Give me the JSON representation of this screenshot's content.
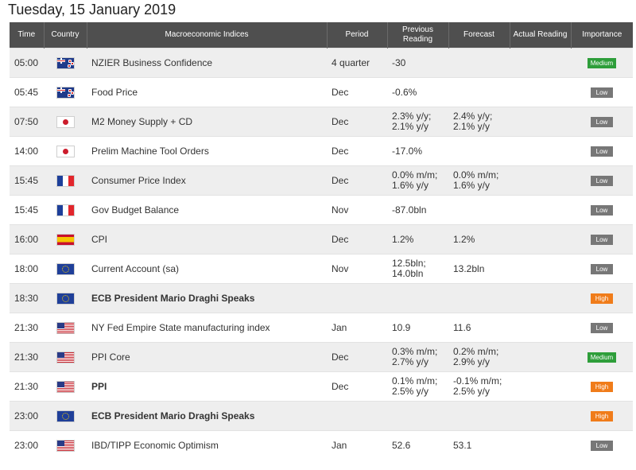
{
  "page": {
    "date_title": "Tuesday, 15 January 2019"
  },
  "table": {
    "headers": {
      "time": "Time",
      "country": "Country",
      "indices": "Macroeconomic Indices",
      "period": "Period",
      "previous": "Previous Reading",
      "forecast": "Forecast",
      "actual": "Actual Reading",
      "importance": "Importance"
    },
    "rows": [
      {
        "time": "05:00",
        "flag": "nz-flag-icon",
        "indicator": "NZIER Business Confidence",
        "bold": false,
        "period": "4 quarter",
        "previous": [
          "-30"
        ],
        "forecast": [],
        "actual": "",
        "importance": "Medium"
      },
      {
        "time": "05:45",
        "flag": "nz-flag-icon",
        "indicator": "Food Price",
        "bold": false,
        "period": "Dec",
        "previous": [
          "-0.6%"
        ],
        "forecast": [],
        "actual": "",
        "importance": "Low"
      },
      {
        "time": "07:50",
        "flag": "jp-flag-icon",
        "indicator": "M2 Money Supply + CD",
        "bold": false,
        "period": "Dec",
        "previous": [
          "2.3% y/y;",
          "2.1% y/y"
        ],
        "forecast": [
          "2.4% y/y;",
          "2.1% y/y"
        ],
        "actual": "",
        "importance": "Low"
      },
      {
        "time": "14:00",
        "flag": "jp-flag-icon",
        "indicator": "Prelim Machine Tool Orders",
        "bold": false,
        "period": "Dec",
        "previous": [
          "-17.0%"
        ],
        "forecast": [],
        "actual": "",
        "importance": "Low"
      },
      {
        "time": "15:45",
        "flag": "fr-flag-icon",
        "indicator": "Consumer Price Index",
        "bold": false,
        "period": "Dec",
        "previous": [
          "0.0% m/m;",
          "1.6% y/y"
        ],
        "forecast": [
          "0.0% m/m;",
          "1.6% y/y"
        ],
        "actual": "",
        "importance": "Low"
      },
      {
        "time": "15:45",
        "flag": "fr-flag-icon",
        "indicator": "Gov Budget Balance",
        "bold": false,
        "period": "Nov",
        "previous": [
          "-87.0bln"
        ],
        "forecast": [],
        "actual": "",
        "importance": "Low"
      },
      {
        "time": "16:00",
        "flag": "es-flag-icon",
        "indicator": "CPI",
        "bold": false,
        "period": "Dec",
        "previous": [
          "1.2%"
        ],
        "forecast": [
          "1.2%"
        ],
        "actual": "",
        "importance": "Low"
      },
      {
        "time": "18:00",
        "flag": "eu-flag-icon",
        "indicator": "Current Account (sa)",
        "bold": false,
        "period": "Nov",
        "previous": [
          "12.5bln;",
          "14.0bln"
        ],
        "forecast": [
          "13.2bln"
        ],
        "actual": "",
        "importance": "Low"
      },
      {
        "time": "18:30",
        "flag": "eu-flag-icon",
        "indicator": "ECB President Mario Draghi Speaks",
        "bold": true,
        "period": "",
        "previous": [],
        "forecast": [],
        "actual": "",
        "importance": "High"
      },
      {
        "time": "21:30",
        "flag": "us-flag-icon",
        "indicator": "NY Fed Empire State manufacturing index",
        "bold": false,
        "period": "Jan",
        "previous": [
          "10.9"
        ],
        "forecast": [
          "11.6"
        ],
        "actual": "",
        "importance": "Low"
      },
      {
        "time": "21:30",
        "flag": "us-flag-icon",
        "indicator": "PPI Core",
        "bold": false,
        "period": "Dec",
        "previous": [
          "0.3% m/m;",
          "2.7% y/y"
        ],
        "forecast": [
          "0.2% m/m;",
          "2.9% y/y"
        ],
        "actual": "",
        "importance": "Medium"
      },
      {
        "time": "21:30",
        "flag": "us-flag-icon",
        "indicator": "PPI",
        "bold": true,
        "period": "Dec",
        "previous": [
          "0.1% m/m;",
          "2.5% y/y"
        ],
        "forecast": [
          "-0.1% m/m;",
          "2.5% y/y"
        ],
        "actual": "",
        "importance": "High"
      },
      {
        "time": "23:00",
        "flag": "eu-flag-icon",
        "indicator": "ECB President Mario Draghi Speaks",
        "bold": true,
        "period": "",
        "previous": [],
        "forecast": [],
        "actual": "",
        "importance": "High"
      },
      {
        "time": "23:00",
        "flag": "us-flag-icon",
        "indicator": "IBD/TIPP Economic Optimism",
        "bold": false,
        "period": "Jan",
        "previous": [
          "52.6"
        ],
        "forecast": [
          "53.1"
        ],
        "actual": "",
        "importance": "Low"
      }
    ]
  }
}
